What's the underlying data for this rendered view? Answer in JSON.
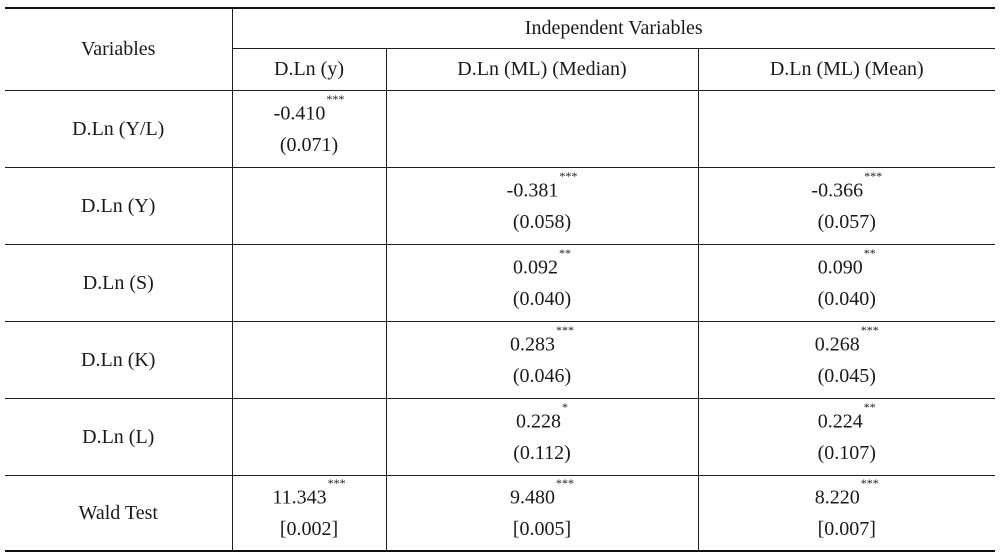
{
  "header": {
    "variables_label": "Variables",
    "group_label": "Independent Variables",
    "columns": [
      "D.Ln (y)",
      "D.Ln  (ML) (Median)",
      "D.Ln (ML) (Mean)"
    ]
  },
  "rows": [
    {
      "label": "D.Ln (Y/L)",
      "cells": [
        {
          "value": "-0.410",
          "stars": "***",
          "se": "(0.071)"
        },
        {
          "value": "",
          "stars": "",
          "se": ""
        },
        {
          "value": "",
          "stars": "",
          "se": ""
        }
      ]
    },
    {
      "label": "D.Ln (Y)",
      "cells": [
        {
          "value": "",
          "stars": "",
          "se": ""
        },
        {
          "value": "-0.381",
          "stars": "***",
          "se": "(0.058)"
        },
        {
          "value": "-0.366",
          "stars": "***",
          "se": "(0.057)"
        }
      ]
    },
    {
      "label": "D.Ln (S)",
      "cells": [
        {
          "value": "",
          "stars": "",
          "se": ""
        },
        {
          "value": "0.092",
          "stars": "**",
          "se": "(0.040)"
        },
        {
          "value": "0.090",
          "stars": "**",
          "se": "(0.040)"
        }
      ]
    },
    {
      "label": "D.Ln (K)",
      "cells": [
        {
          "value": "",
          "stars": "",
          "se": ""
        },
        {
          "value": "0.283",
          "stars": "***",
          "se": "(0.046)"
        },
        {
          "value": "0.268",
          "stars": "***",
          "se": "(0.045)"
        }
      ]
    },
    {
      "label": "D.Ln (L)",
      "cells": [
        {
          "value": "",
          "stars": "",
          "se": ""
        },
        {
          "value": "0.228",
          "stars": "*",
          "se": "(0.112)"
        },
        {
          "value": "0.224",
          "stars": "**",
          "se": "(0.107)"
        }
      ]
    },
    {
      "label": "Wald Test",
      "cells": [
        {
          "value": "11.343",
          "stars": "***",
          "se": "[0.002]"
        },
        {
          "value": "9.480",
          "stars": "***",
          "se": "[0.005]"
        },
        {
          "value": "8.220",
          "stars": "***",
          "se": "[0.007]"
        }
      ]
    }
  ]
}
